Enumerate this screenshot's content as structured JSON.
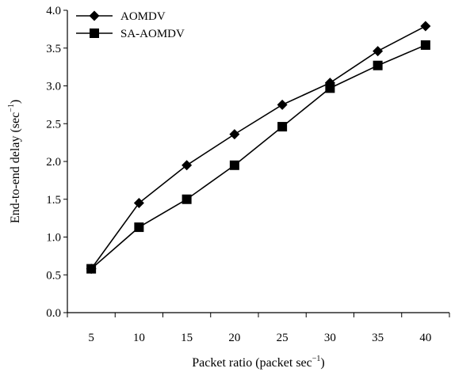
{
  "chart_data": {
    "type": "line",
    "x": [
      5,
      10,
      15,
      20,
      25,
      30,
      35,
      40
    ],
    "series": [
      {
        "name": "AOMDV",
        "marker": "diamond",
        "values": [
          0.58,
          1.45,
          1.95,
          2.36,
          2.75,
          3.04,
          3.46,
          3.79
        ]
      },
      {
        "name": "SA-AOMDV",
        "marker": "square",
        "values": [
          0.58,
          1.13,
          1.5,
          1.95,
          2.46,
          2.97,
          3.27,
          3.54
        ]
      }
    ],
    "xlabel_main": "Packet ratio (packet sec",
    "xlabel_sup": "−1",
    "xlabel_end": ")",
    "ylabel_main": "End-to-end delay (sec",
    "ylabel_sup": "−1",
    "ylabel_end": ")",
    "ylim": [
      0,
      4.0
    ],
    "yticks": [
      "0.0",
      "0.5",
      "1.0",
      "1.5",
      "2.0",
      "2.5",
      "3.0",
      "3.5",
      "4.0"
    ],
    "xticks": [
      "5",
      "10",
      "15",
      "20",
      "25",
      "30",
      "35",
      "40"
    ],
    "legend_position": "top-left",
    "grid": false,
    "colors": {
      "series": "#000000"
    }
  }
}
